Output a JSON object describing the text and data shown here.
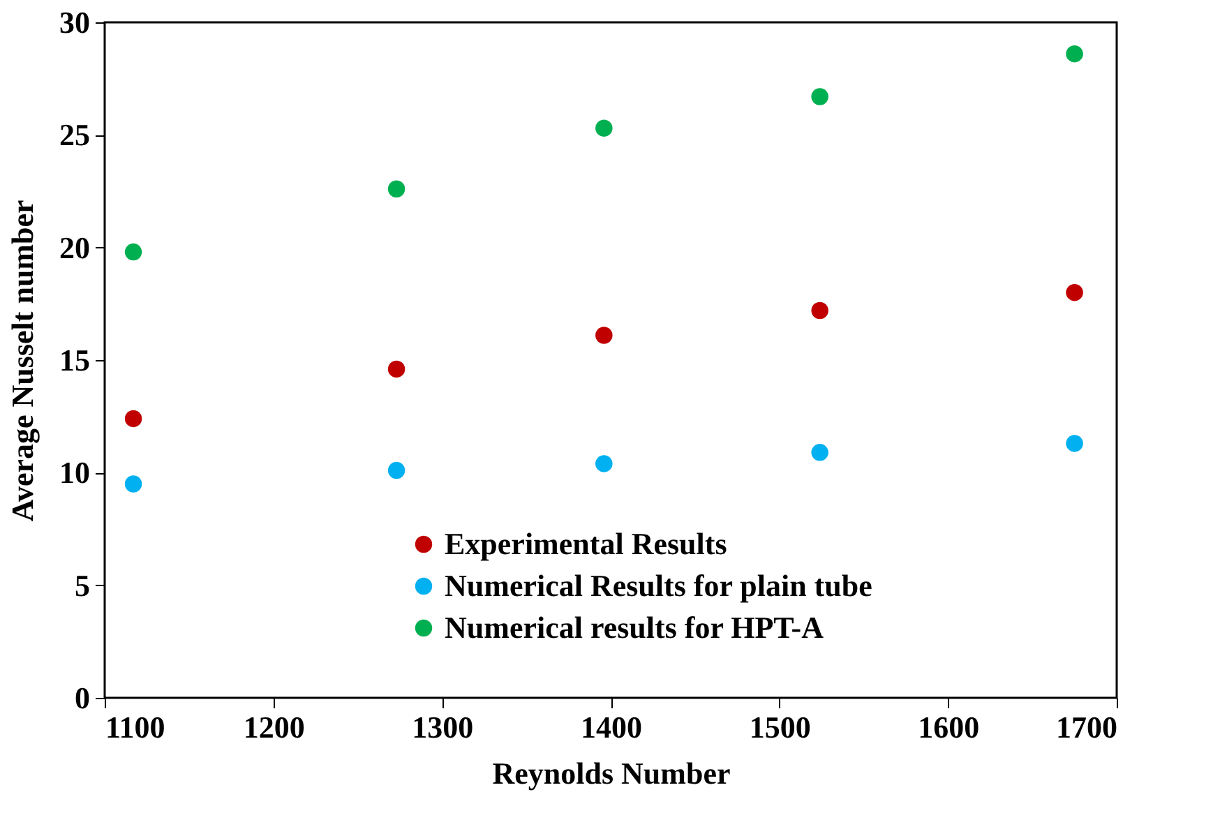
{
  "chart_data": {
    "type": "scatter",
    "xlabel": "Reynolds Number",
    "ylabel": "Average Nusselt number",
    "x": [
      1117,
      1273,
      1396,
      1524,
      1675
    ],
    "series": [
      {
        "name": "Experimental Results",
        "color": "#c00000",
        "values": [
          12.4,
          14.6,
          16.1,
          17.2,
          18.0
        ]
      },
      {
        "name": "Numerical Results for plain tube",
        "color": "#00b0f0",
        "values": [
          9.5,
          10.1,
          10.4,
          10.9,
          11.3
        ]
      },
      {
        "name": "Numerical results for HPT-A",
        "color": "#00b050",
        "values": [
          19.8,
          22.6,
          25.3,
          26.7,
          28.6
        ]
      }
    ],
    "xlim": [
      1100,
      1700
    ],
    "xticks": [
      1100,
      1200,
      1300,
      1400,
      1500,
      1600,
      1700
    ],
    "ylim": [
      0,
      30
    ],
    "yticks": [
      0,
      5,
      10,
      15,
      20,
      25,
      30
    ],
    "marker": "circle",
    "legend": "bottom",
    "grid": false
  }
}
